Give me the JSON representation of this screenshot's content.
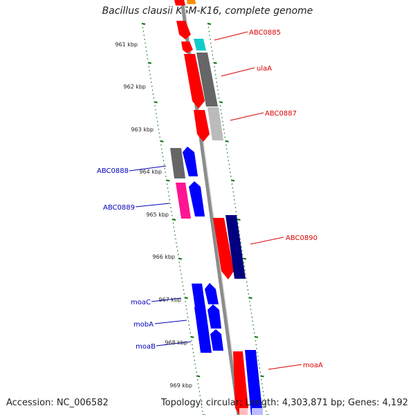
{
  "title": "Bacillus clausii KSM-K16, complete genome",
  "footer": {
    "accession": "Accession: NC_006582",
    "summary": "Topology: circular; Length: 4,303,871 bp; Genes: 4,192"
  },
  "ticks": [
    "961 kbp",
    "962 kbp",
    "963 kbp",
    "964 kbp",
    "965 kbp",
    "966 kbp",
    "967 kbp",
    "968 kbp",
    "969 kbp"
  ],
  "gene_labels": [
    "ABC0885",
    "ulaA",
    "ABC0887",
    "ABC0888",
    "ABC0889",
    "ABC0890",
    "moaC",
    "mobA",
    "moaB",
    "moaA"
  ],
  "colors": {
    "backbone": "#8c8c8c",
    "tick": "#1a7a1a",
    "label_right": "#dd0000",
    "label_left": "#0000bb",
    "red": "#ff0000",
    "grey": "#666666",
    "cyan": "#11cccc",
    "blue": "#0000ff",
    "navy": "#000080",
    "pink": "#ff1493",
    "lightgrey": "#bbbbbb",
    "orange": "#ff8c00"
  }
}
